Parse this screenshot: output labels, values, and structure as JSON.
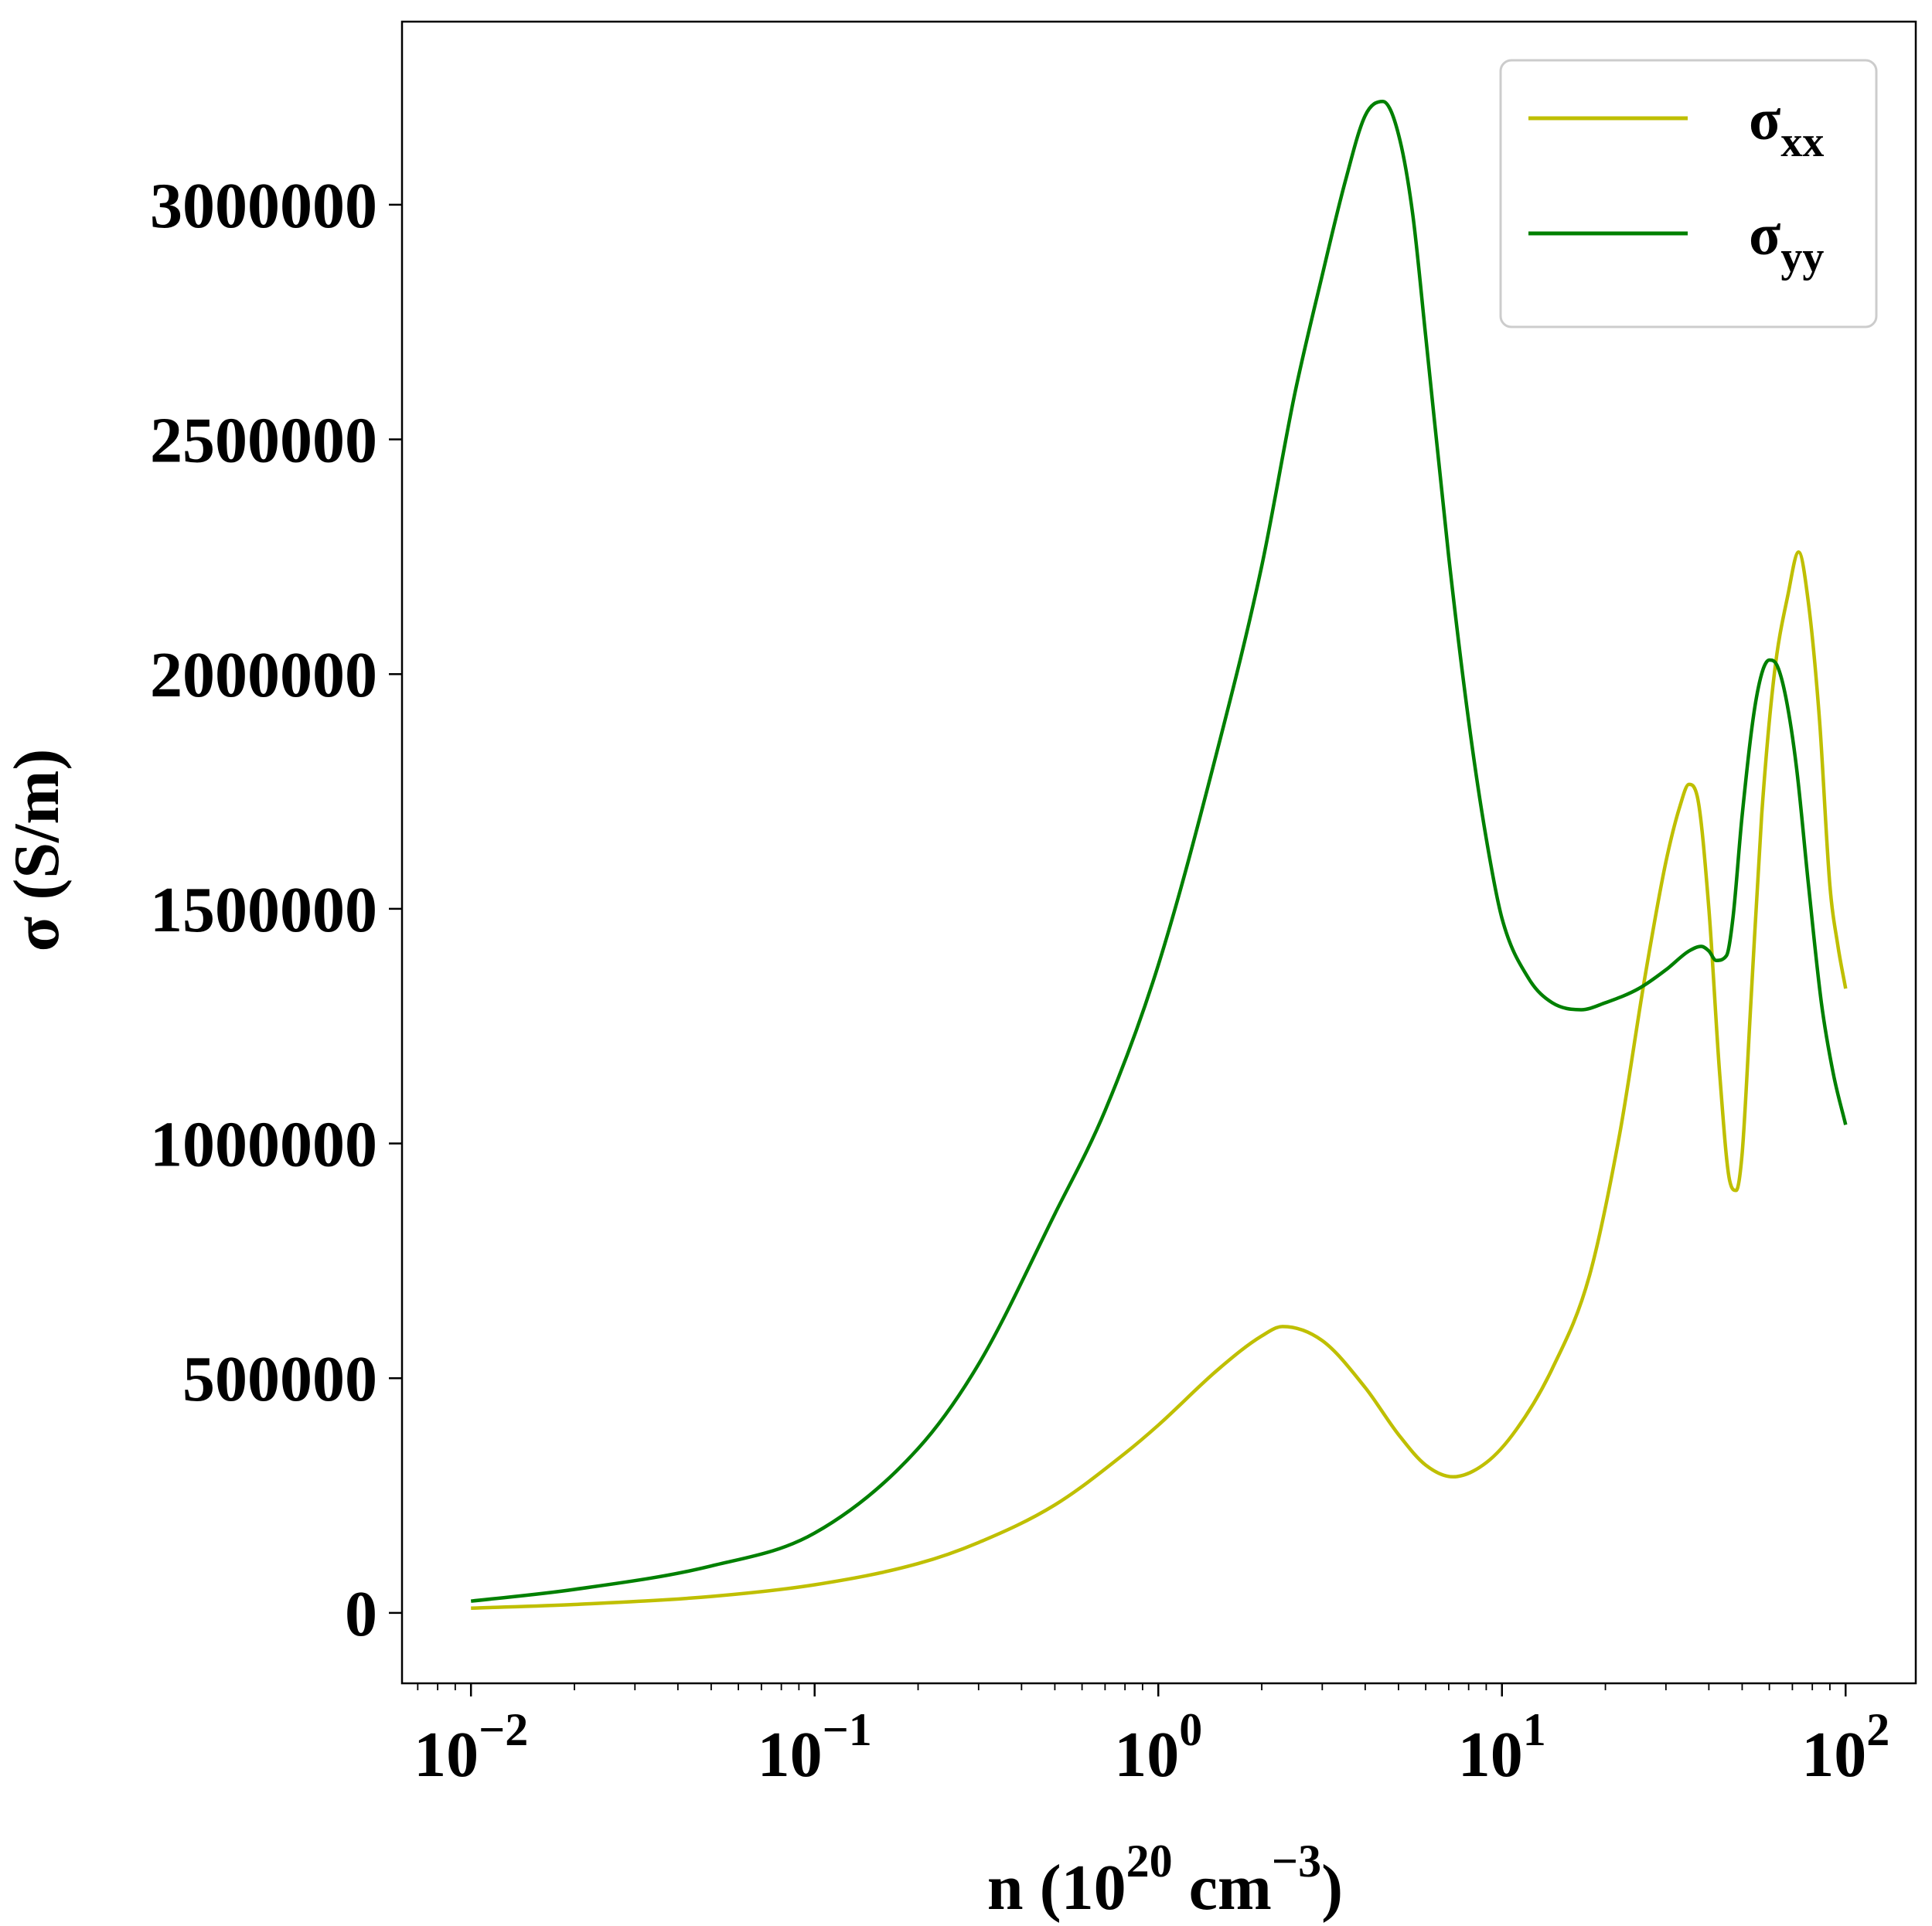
{
  "chart_data": {
    "type": "line",
    "xscale": "log",
    "xlim": [
      0.0063,
      160
    ],
    "ylim": [
      -150000,
      3390000
    ],
    "grid": false,
    "legend_position": "top-right",
    "xlabel": {
      "main": "n (10",
      "exp": "20",
      "unit": " cm",
      "unit_exp": "−3",
      "close": ")"
    },
    "ylabel": "σ (S/m)",
    "x_ticks": [
      {
        "value": 0.01,
        "base": "10",
        "exp": "−2"
      },
      {
        "value": 0.1,
        "base": "10",
        "exp": "−1"
      },
      {
        "value": 1,
        "base": "10",
        "exp": "0"
      },
      {
        "value": 10,
        "base": "10",
        "exp": "1"
      },
      {
        "value": 100,
        "base": "10",
        "exp": "2"
      }
    ],
    "y_ticks": [
      {
        "value": 0,
        "label": "0"
      },
      {
        "value": 500000,
        "label": "500000"
      },
      {
        "value": 1000000,
        "label": "1000000"
      },
      {
        "value": 1500000,
        "label": "1500000"
      },
      {
        "value": 2000000,
        "label": "2000000"
      },
      {
        "value": 2500000,
        "label": "2500000"
      },
      {
        "value": 3000000,
        "label": "3000000"
      }
    ],
    "series": [
      {
        "name": "σxx",
        "legend_main": "σ",
        "legend_sub": "xx",
        "color": "#bfbf00",
        "x": [
          0.01,
          0.02,
          0.05,
          0.1,
          0.2,
          0.3,
          0.5,
          0.8,
          1.0,
          1.5,
          2.0,
          2.3,
          3.0,
          4.0,
          5.0,
          6.0,
          7.2,
          9.0,
          11.0,
          14.0,
          18.0,
          22.0,
          26.0,
          30.0,
          33.0,
          35.0,
          37.0,
          40.0,
          43.0,
          46.0,
          48.0,
          50.0,
          53.0,
          57.0,
          62.0,
          68.0,
          73.0,
          78.0,
          84.0,
          90.0,
          95.0,
          100.0
        ],
        "y": [
          10000,
          18000,
          35000,
          60000,
          105000,
          150000,
          230000,
          340000,
          400000,
          520000,
          590000,
          610000,
          580000,
          480000,
          380000,
          315000,
          290000,
          320000,
          390000,
          520000,
          720000,
          1020000,
          1350000,
          1600000,
          1720000,
          1765000,
          1740000,
          1500000,
          1150000,
          920000,
          900000,
          980000,
          1300000,
          1700000,
          2000000,
          2170000,
          2260000,
          2150000,
          1900000,
          1550000,
          1420000,
          1330000
        ]
      },
      {
        "name": "σyy",
        "legend_main": "σ",
        "legend_sub": "yy",
        "color": "#008000",
        "x": [
          0.01,
          0.02,
          0.05,
          0.1,
          0.2,
          0.3,
          0.5,
          0.7,
          1.0,
          1.5,
          2.0,
          2.5,
          3.0,
          3.5,
          4.0,
          4.5,
          5.0,
          5.5,
          6.0,
          7.0,
          8.0,
          9.0,
          10.0,
          12.0,
          14.0,
          17.0,
          20.0,
          25.0,
          30.0,
          35.0,
          38.0,
          40.0,
          42.0,
          45.0,
          47.0,
          50.0,
          55.0,
          60.0,
          63.0,
          67.0,
          72.0,
          78.0,
          85.0,
          92.0,
          100.0
        ],
        "y": [
          25000,
          50000,
          100000,
          170000,
          350000,
          530000,
          850000,
          1070000,
          1380000,
          1850000,
          2230000,
          2600000,
          2850000,
          3050000,
          3190000,
          3220000,
          3150000,
          2980000,
          2720000,
          2250000,
          1900000,
          1650000,
          1480000,
          1350000,
          1300000,
          1285000,
          1300000,
          1330000,
          1370000,
          1410000,
          1420000,
          1410000,
          1390000,
          1400000,
          1480000,
          1700000,
          1950000,
          2030000,
          2020000,
          1950000,
          1800000,
          1550000,
          1300000,
          1150000,
          1040000
        ]
      }
    ]
  }
}
